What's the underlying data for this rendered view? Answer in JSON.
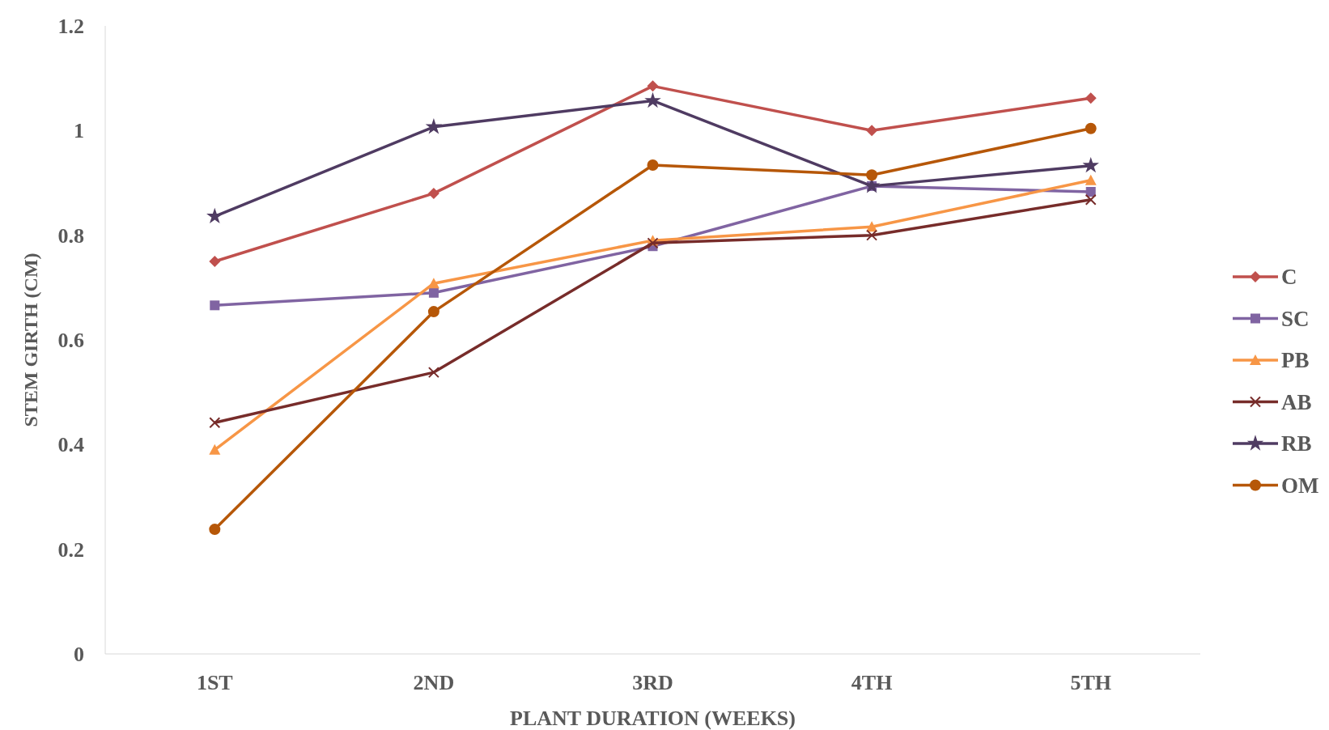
{
  "chart_data": {
    "type": "line",
    "xlabel": "PLANT DURATION (WEEKS)",
    "ylabel": "STEM GIRTH (CM)",
    "categories": [
      "1ST",
      "2ND",
      "3RD",
      "4TH",
      "5TH"
    ],
    "ylim": [
      0,
      1.2
    ],
    "yticks": [
      0,
      0.2,
      0.4,
      0.6,
      0.8,
      1,
      1.2
    ],
    "legend": "right",
    "series": [
      {
        "name": "C",
        "color": "#c0504d",
        "marker": "diamond",
        "values": [
          0.75,
          0.88,
          1.085,
          1.0,
          1.062
        ]
      },
      {
        "name": "SC",
        "color": "#8064a2",
        "marker": "square",
        "values": [
          0.666,
          0.69,
          0.779,
          0.894,
          0.883
        ]
      },
      {
        "name": "PB",
        "color": "#f79646",
        "marker": "triangle",
        "values": [
          0.39,
          0.708,
          0.79,
          0.816,
          0.905
        ]
      },
      {
        "name": "AB",
        "color": "#772c2a",
        "marker": "cross",
        "values": [
          0.442,
          0.538,
          0.785,
          0.8,
          0.868
        ]
      },
      {
        "name": "RB",
        "color": "#4f3b62",
        "marker": "star",
        "values": [
          0.836,
          1.007,
          1.057,
          0.894,
          0.933
        ]
      },
      {
        "name": "OM",
        "color": "#b65708",
        "marker": "circle",
        "values": [
          0.238,
          0.654,
          0.934,
          0.915,
          1.004
        ]
      }
    ]
  }
}
